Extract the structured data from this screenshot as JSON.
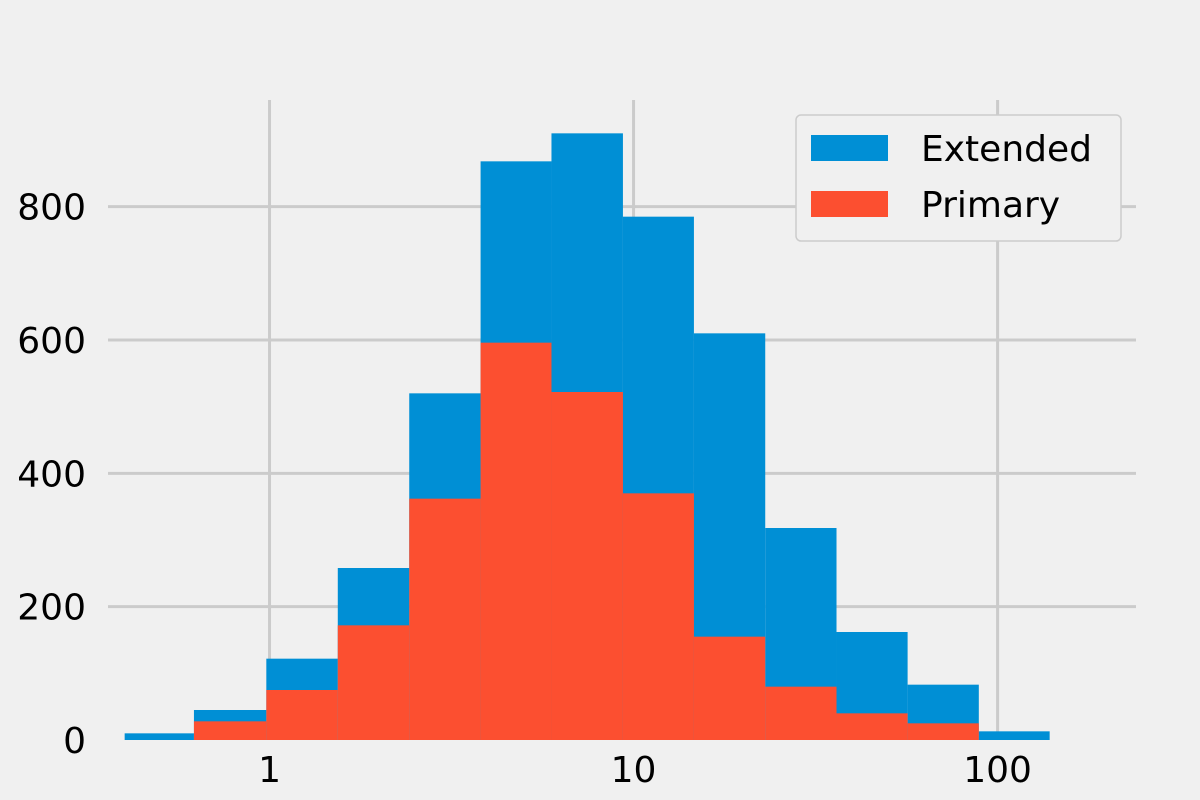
{
  "chart_data": {
    "type": "bar",
    "subtype": "histogram",
    "title": "",
    "xlabel": "",
    "ylabel": "",
    "xscale": "log",
    "xlim": [
      0.36,
      240
    ],
    "ylim": [
      0,
      960
    ],
    "grid": true,
    "legend_position": "top-right",
    "x_ticks": [
      {
        "value": 1,
        "label": "1"
      },
      {
        "value": 10,
        "label": "10"
      },
      {
        "value": 100,
        "label": "100"
      }
    ],
    "y_ticks": [
      {
        "value": 0,
        "label": "0"
      },
      {
        "value": 200,
        "label": "200"
      },
      {
        "value": 400,
        "label": "400"
      },
      {
        "value": 600,
        "label": "600"
      },
      {
        "value": 800,
        "label": "800"
      }
    ],
    "bin_edges": [
      0.4,
      0.62,
      0.98,
      1.54,
      2.42,
      3.8,
      5.95,
      9.35,
      14.65,
      23.0,
      36.1,
      56.6,
      88.8,
      139
    ],
    "series": [
      {
        "name": "Extended",
        "color": "#008fd5",
        "values": [
          10,
          45,
          122,
          258,
          520,
          868,
          910,
          785,
          610,
          318,
          162,
          83,
          13
        ]
      },
      {
        "name": "Primary",
        "color": "#fc4f30",
        "values": [
          0,
          28,
          75,
          172,
          362,
          596,
          522,
          370,
          155,
          80,
          40,
          25,
          0
        ]
      }
    ]
  }
}
